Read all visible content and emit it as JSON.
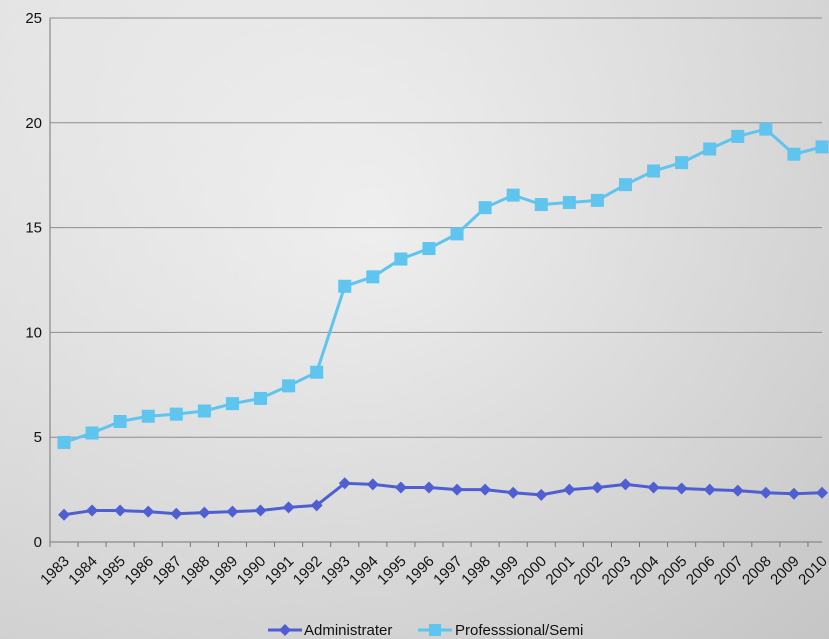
{
  "chart_data": {
    "type": "line",
    "title": "",
    "xlabel": "",
    "ylabel": "",
    "categories": [
      "1983",
      "1984",
      "1985",
      "1986",
      "1987",
      "1988",
      "1989",
      "1990",
      "1991",
      "1992",
      "1993",
      "1994",
      "1995",
      "1996",
      "1997",
      "1998",
      "1999",
      "2000",
      "2001",
      "2002",
      "2003",
      "2004",
      "2005",
      "2006",
      "2007",
      "2008",
      "2009",
      "2010"
    ],
    "yticks": [
      "0",
      "5",
      "10",
      "15",
      "20",
      "25"
    ],
    "ylim": [
      0,
      25
    ],
    "grid": true,
    "legend_position": "bottom",
    "series": [
      {
        "name": "Administrater",
        "color": "#4f5fd1",
        "marker": "diamond",
        "values": [
          1.3,
          1.5,
          1.5,
          1.45,
          1.35,
          1.4,
          1.45,
          1.5,
          1.65,
          1.75,
          2.8,
          2.75,
          2.6,
          2.6,
          2.5,
          2.5,
          2.35,
          2.25,
          2.5,
          2.6,
          2.75,
          2.6,
          2.55,
          2.5,
          2.45,
          2.35,
          2.3,
          2.35
        ]
      },
      {
        "name": "Professsional/Semi",
        "color": "#5fc4ee",
        "marker": "square",
        "values": [
          4.75,
          5.2,
          5.75,
          6.0,
          6.1,
          6.25,
          6.6,
          6.85,
          7.45,
          8.1,
          12.2,
          12.65,
          13.5,
          14.0,
          14.7,
          15.95,
          16.55,
          16.1,
          16.2,
          16.3,
          17.05,
          17.7,
          18.1,
          18.75,
          19.35,
          19.7,
          18.5,
          18.85
        ]
      }
    ]
  }
}
